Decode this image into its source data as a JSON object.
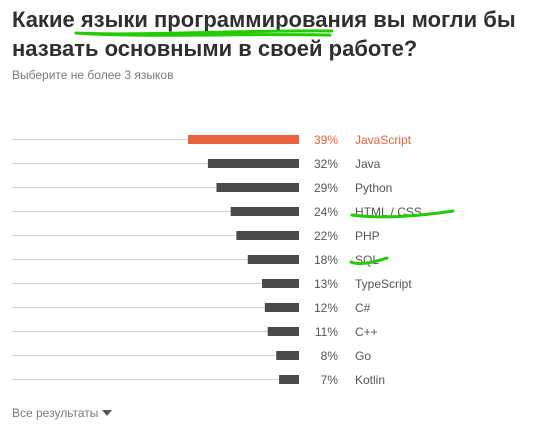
{
  "question": {
    "title": "Какие языки программирования вы могли бы назвать основными в своей работе?",
    "subtitle": "Выберите не более 3 языков"
  },
  "footer": {
    "more_label": "Все результаты"
  },
  "colors": {
    "highlight": "#e8603c",
    "bar": "#4a4a4a",
    "baseline": "#cfcfcf",
    "annotation": "#22cc00"
  },
  "chart_data": {
    "type": "bar",
    "orientation": "horizontal",
    "categories": [
      "JavaScript",
      "Java",
      "Python",
      "HTML / CSS",
      "PHP",
      "SQL",
      "TypeScript",
      "C#",
      "C++",
      "Go",
      "Kotlin"
    ],
    "values": [
      39,
      32,
      29,
      24,
      22,
      18,
      13,
      12,
      11,
      8,
      7
    ],
    "value_labels": [
      "39%",
      "32%",
      "29%",
      "24%",
      "22%",
      "18%",
      "13%",
      "12%",
      "11%",
      "8%",
      "7%"
    ],
    "highlighted_index": 0,
    "xlim": [
      0,
      100
    ],
    "grid": false
  }
}
